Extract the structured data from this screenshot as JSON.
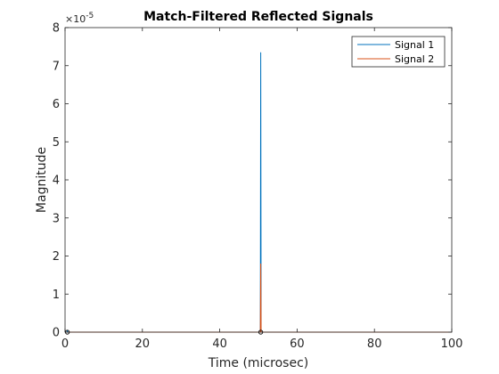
{
  "chart_data": {
    "type": "line",
    "title": "Match-Filtered Reflected Signals",
    "xlabel": "Time (microsec)",
    "ylabel": "Magnitude",
    "xlim": [
      0,
      100
    ],
    "ylim": [
      0,
      8e-05
    ],
    "y_exponent_label": "×10",
    "y_exponent_power": "-5",
    "xticks": [
      0,
      20,
      40,
      60,
      80,
      100
    ],
    "xtick_labels": [
      "0",
      "20",
      "40",
      "60",
      "80",
      "100"
    ],
    "yticks": [
      0,
      1e-05,
      2e-05,
      3e-05,
      4e-05,
      5e-05,
      6e-05,
      7e-05,
      8e-05
    ],
    "ytick_labels": [
      "0",
      "1",
      "2",
      "3",
      "4",
      "5",
      "6",
      "7",
      "8"
    ],
    "grid": false,
    "legend_position": "top-right",
    "series": [
      {
        "name": "Signal 1",
        "color": "#0072BD",
        "x": [
          0,
          0.5,
          0.6,
          0.7,
          50.5,
          50.6,
          50.7,
          100
        ],
        "y": [
          0,
          0,
          5e-07,
          0,
          0,
          7.35e-05,
          0,
          0
        ]
      },
      {
        "name": "Signal 2",
        "color": "#D95319",
        "x": [
          0,
          50.5,
          50.6,
          50.7,
          100
        ],
        "y": [
          0,
          0,
          1.8e-05,
          0,
          0
        ]
      }
    ],
    "markers": [
      {
        "x": 50.6,
        "y": 0,
        "color": "#000000"
      },
      {
        "x": 0.6,
        "y": 0,
        "color": "#000000"
      }
    ]
  }
}
